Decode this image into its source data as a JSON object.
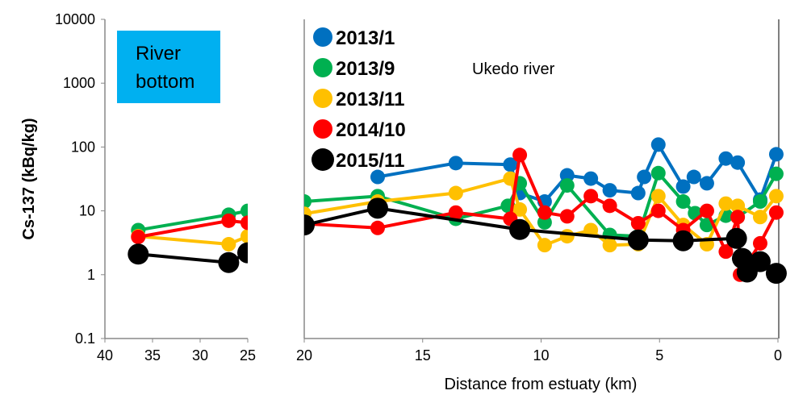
{
  "chart_data": {
    "type": "line",
    "ylabel": "Cs-137 (kBq/kg)",
    "xlabel": "Distance from estuaty (km)",
    "yscale": "log",
    "ylim": [
      0.1,
      10000
    ],
    "yticks": [
      "0.1",
      "1",
      "10",
      "100",
      "1000",
      "10000"
    ],
    "annotation": "Ukedo river",
    "panel_label": [
      "River",
      "bottom"
    ],
    "panel_label_color": "#00B0F0",
    "legend_placement": "top-left",
    "left_panel": {
      "xlim": [
        40,
        25
      ],
      "xticks": [
        "40",
        "35",
        "30",
        "25"
      ]
    },
    "right_panel": {
      "xlim": [
        20,
        0
      ],
      "xticks": [
        "20",
        "15",
        "10",
        "5",
        "0"
      ]
    },
    "series": [
      {
        "name": "2013/1",
        "color": "#0070C0",
        "left": [],
        "right": [
          [
            16.9,
            34
          ],
          [
            13.6,
            56
          ],
          [
            11.3,
            53
          ],
          [
            10.9,
            19
          ],
          [
            9.85,
            14
          ],
          [
            8.9,
            36
          ],
          [
            7.9,
            32
          ],
          [
            7.1,
            21
          ],
          [
            5.9,
            19
          ],
          [
            5.65,
            34
          ],
          [
            5.05,
            109
          ],
          [
            4.0,
            24
          ],
          [
            3.55,
            34
          ],
          [
            3.0,
            27
          ],
          [
            2.2,
            66
          ],
          [
            1.7,
            57
          ],
          [
            0.75,
            15
          ],
          [
            0.07,
            77
          ]
        ]
      },
      {
        "name": "2013/9",
        "color": "#00B050",
        "left": [
          [
            36.5,
            5
          ],
          [
            27,
            8.7
          ],
          [
            25,
            10
          ]
        ],
        "right": [
          [
            20,
            14
          ],
          [
            16.9,
            17
          ],
          [
            13.6,
            7.5
          ],
          [
            11.4,
            12
          ],
          [
            10.9,
            27
          ],
          [
            9.85,
            6.6
          ],
          [
            8.9,
            25
          ],
          [
            7.1,
            4.2
          ],
          [
            5.9,
            4.0
          ],
          [
            5.05,
            39
          ],
          [
            4.0,
            14
          ],
          [
            3.5,
            9.2
          ],
          [
            3.0,
            6
          ],
          [
            2.2,
            8.4
          ],
          [
            1.7,
            8
          ],
          [
            0.75,
            14
          ],
          [
            0.07,
            38
          ]
        ]
      },
      {
        "name": "2013/11",
        "color": "#FFC000",
        "left": [
          [
            36.5,
            4
          ],
          [
            27,
            3
          ],
          [
            25,
            4
          ]
        ],
        "right": [
          [
            20,
            9
          ],
          [
            16.9,
            14
          ],
          [
            13.6,
            19
          ],
          [
            11.3,
            32
          ],
          [
            10.9,
            10.5
          ],
          [
            9.85,
            2.9
          ],
          [
            8.9,
            4
          ],
          [
            7.9,
            5
          ],
          [
            7.1,
            2.9
          ],
          [
            5.9,
            3.0
          ],
          [
            5.05,
            17
          ],
          [
            4.0,
            6
          ],
          [
            3.0,
            3
          ],
          [
            2.2,
            13
          ],
          [
            1.7,
            12
          ],
          [
            0.75,
            8
          ],
          [
            0.07,
            17
          ]
        ]
      },
      {
        "name": "2014/10",
        "color": "#FF0000",
        "left": [
          [
            36.5,
            3.9
          ],
          [
            27,
            7
          ],
          [
            25,
            6.5
          ]
        ],
        "right": [
          [
            20,
            6.3
          ],
          [
            16.9,
            5.4
          ],
          [
            13.6,
            9.4
          ],
          [
            11.3,
            7.5
          ],
          [
            10.9,
            75
          ],
          [
            9.85,
            9.4
          ],
          [
            8.9,
            8.2
          ],
          [
            7.9,
            17
          ],
          [
            7.1,
            12
          ],
          [
            5.9,
            6.4
          ],
          [
            5.05,
            10
          ],
          [
            4.0,
            5
          ],
          [
            3.0,
            10
          ],
          [
            2.2,
            2.3
          ],
          [
            1.7,
            8
          ],
          [
            1.6,
            1
          ],
          [
            0.75,
            3.1
          ],
          [
            0.07,
            9.4
          ]
        ]
      },
      {
        "name": "2015/11",
        "color": "#000000",
        "left": [
          [
            36.5,
            2.1
          ],
          [
            27,
            1.55
          ],
          [
            25,
            2.2
          ]
        ],
        "right": [
          [
            20,
            6
          ],
          [
            16.9,
            11
          ],
          [
            10.9,
            5.1
          ],
          [
            5.9,
            3.5
          ],
          [
            4.0,
            3.4
          ],
          [
            1.75,
            3.7
          ],
          [
            1.5,
            1.8
          ],
          [
            1.3,
            1.1
          ],
          [
            0.75,
            1.6
          ],
          [
            0.07,
            1.05
          ]
        ]
      }
    ]
  }
}
